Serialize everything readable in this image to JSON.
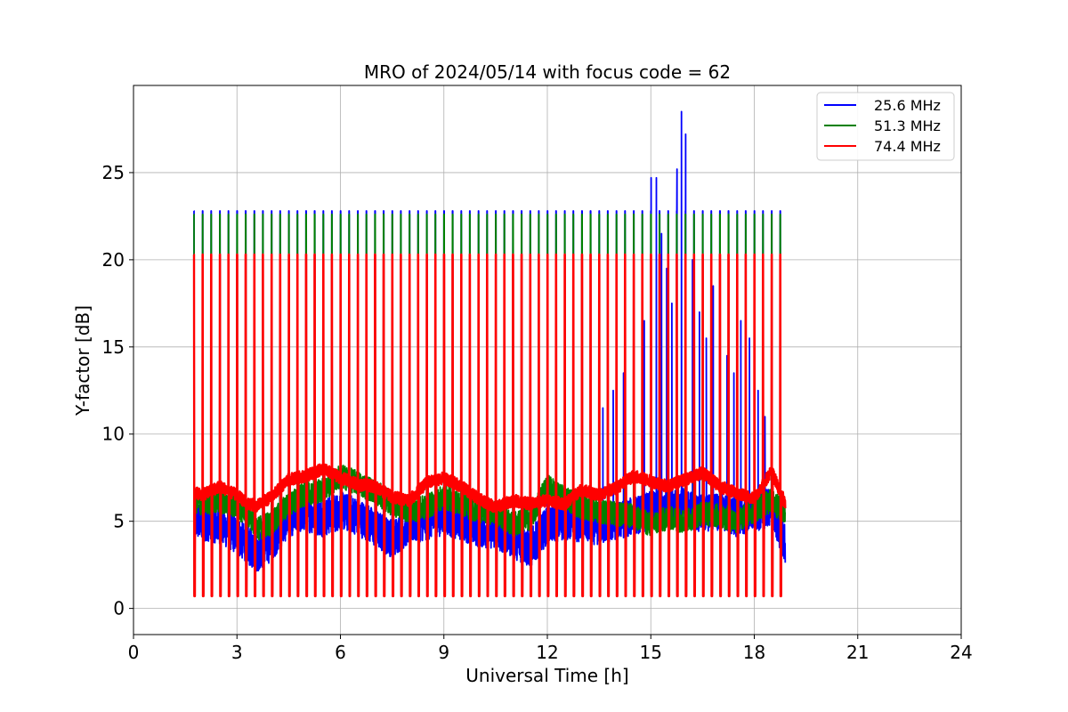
{
  "chart_data": {
    "type": "line",
    "title": "MRO of 2024/05/14 with focus code = 62",
    "xlabel": "Universal Time [h]",
    "ylabel": "Y-factor [dB]",
    "xlim": [
      0,
      24
    ],
    "ylim": [
      -1.5,
      30
    ],
    "xticks": [
      0,
      3,
      6,
      9,
      12,
      15,
      18,
      21,
      24
    ],
    "yticks": [
      0,
      5,
      10,
      15,
      20,
      25
    ],
    "xtick_labels": [
      "0",
      "3",
      "6",
      "9",
      "12",
      "15",
      "18",
      "21",
      "24"
    ],
    "ytick_labels": [
      "0",
      "5",
      "10",
      "15",
      "20",
      "25"
    ],
    "grid": true,
    "legend_position": "top-right",
    "calibration": {
      "start_hour": 1.75,
      "end_hour": 18.75,
      "interval_hours": 0.25
    },
    "series": [
      {
        "name": "25.6 MHz",
        "color": "#0000ff",
        "spike_peak": 22.8,
        "spike_low": 0.8,
        "x": [
          1.75,
          2.0,
          2.5,
          3.0,
          3.3,
          3.6,
          4.0,
          4.5,
          5.0,
          5.5,
          6.0,
          6.5,
          7.0,
          7.5,
          8.0,
          8.5,
          9.0,
          9.5,
          10.0,
          10.5,
          11.0,
          11.5,
          12.0,
          12.5,
          13.0,
          13.5,
          14.0,
          14.5,
          15.0,
          15.5,
          16.0,
          16.5,
          17.0,
          17.5,
          18.0,
          18.5,
          18.9
        ],
        "y": [
          5.0,
          5.0,
          4.8,
          4.2,
          3.6,
          3.2,
          3.8,
          5.2,
          5.5,
          5.2,
          5.6,
          5.3,
          4.6,
          4.0,
          4.8,
          5.0,
          5.3,
          5.0,
          4.6,
          4.5,
          4.0,
          3.4,
          4.8,
          5.0,
          4.9,
          4.7,
          5.0,
          5.3,
          5.6,
          6.0,
          5.8,
          5.4,
          5.6,
          5.2,
          5.5,
          5.8,
          3.6
        ],
        "bursts": [
          {
            "x": 13.6,
            "peak": 11.5
          },
          {
            "x": 13.9,
            "peak": 12.5
          },
          {
            "x": 14.2,
            "peak": 13.5
          },
          {
            "x": 14.5,
            "peak": 14.5
          },
          {
            "x": 14.8,
            "peak": 16.5
          },
          {
            "x": 15.0,
            "peak": 24.7
          },
          {
            "x": 15.15,
            "peak": 24.7
          },
          {
            "x": 15.3,
            "peak": 21.5
          },
          {
            "x": 15.45,
            "peak": 19.5
          },
          {
            "x": 15.6,
            "peak": 17.5
          },
          {
            "x": 15.75,
            "peak": 25.2
          },
          {
            "x": 15.88,
            "peak": 28.5
          },
          {
            "x": 16.0,
            "peak": 27.2
          },
          {
            "x": 16.2,
            "peak": 20.0
          },
          {
            "x": 16.4,
            "peak": 17.0
          },
          {
            "x": 16.6,
            "peak": 15.5
          },
          {
            "x": 16.8,
            "peak": 18.5
          },
          {
            "x": 17.0,
            "peak": 16.0
          },
          {
            "x": 17.2,
            "peak": 14.5
          },
          {
            "x": 17.4,
            "peak": 13.5
          },
          {
            "x": 17.6,
            "peak": 16.5
          },
          {
            "x": 17.85,
            "peak": 15.5
          },
          {
            "x": 18.1,
            "peak": 12.5
          },
          {
            "x": 18.3,
            "peak": 11.0
          }
        ]
      },
      {
        "name": "51.3 MHz",
        "color": "#008000",
        "spike_peak": 22.6,
        "spike_low": 0.8,
        "x": [
          1.75,
          2.0,
          2.5,
          3.0,
          3.3,
          3.6,
          4.0,
          4.5,
          5.0,
          5.5,
          6.0,
          6.5,
          7.0,
          7.5,
          8.0,
          8.5,
          9.0,
          9.5,
          10.0,
          10.5,
          11.0,
          11.5,
          12.0,
          12.5,
          13.0,
          13.5,
          14.0,
          14.5,
          15.0,
          15.5,
          16.0,
          16.5,
          17.0,
          17.5,
          18.0,
          18.5,
          18.9
        ],
        "y": [
          6.2,
          6.0,
          6.2,
          5.8,
          5.5,
          4.6,
          4.9,
          6.0,
          6.6,
          6.8,
          7.6,
          7.2,
          6.7,
          6.0,
          5.6,
          5.8,
          6.4,
          6.0,
          5.6,
          5.5,
          4.8,
          5.2,
          7.0,
          6.3,
          5.8,
          5.6,
          5.4,
          5.3,
          4.8,
          5.2,
          5.0,
          5.5,
          5.3,
          5.0,
          5.6,
          6.2,
          5.4
        ]
      },
      {
        "name": "74.4 MHz",
        "color": "#ff0000",
        "spike_peak": 20.3,
        "spike_low": 0.7,
        "x": [
          1.75,
          2.0,
          2.5,
          3.0,
          3.3,
          3.6,
          4.0,
          4.5,
          5.0,
          5.5,
          6.0,
          6.5,
          7.0,
          7.5,
          8.0,
          8.5,
          9.0,
          9.5,
          10.0,
          10.5,
          11.0,
          11.5,
          12.0,
          12.5,
          13.0,
          13.5,
          14.0,
          14.5,
          15.0,
          15.5,
          16.0,
          16.5,
          17.0,
          17.5,
          18.0,
          18.5,
          18.9
        ],
        "y": [
          6.7,
          6.5,
          7.0,
          6.5,
          6.0,
          5.9,
          6.4,
          7.4,
          7.6,
          8.0,
          7.5,
          7.1,
          7.0,
          6.4,
          6.2,
          7.2,
          7.5,
          7.0,
          6.3,
          5.8,
          6.2,
          6.0,
          6.2,
          6.0,
          6.8,
          6.5,
          6.9,
          7.6,
          7.3,
          7.0,
          7.4,
          7.8,
          7.0,
          6.6,
          6.3,
          7.9,
          6.0
        ]
      }
    ]
  }
}
